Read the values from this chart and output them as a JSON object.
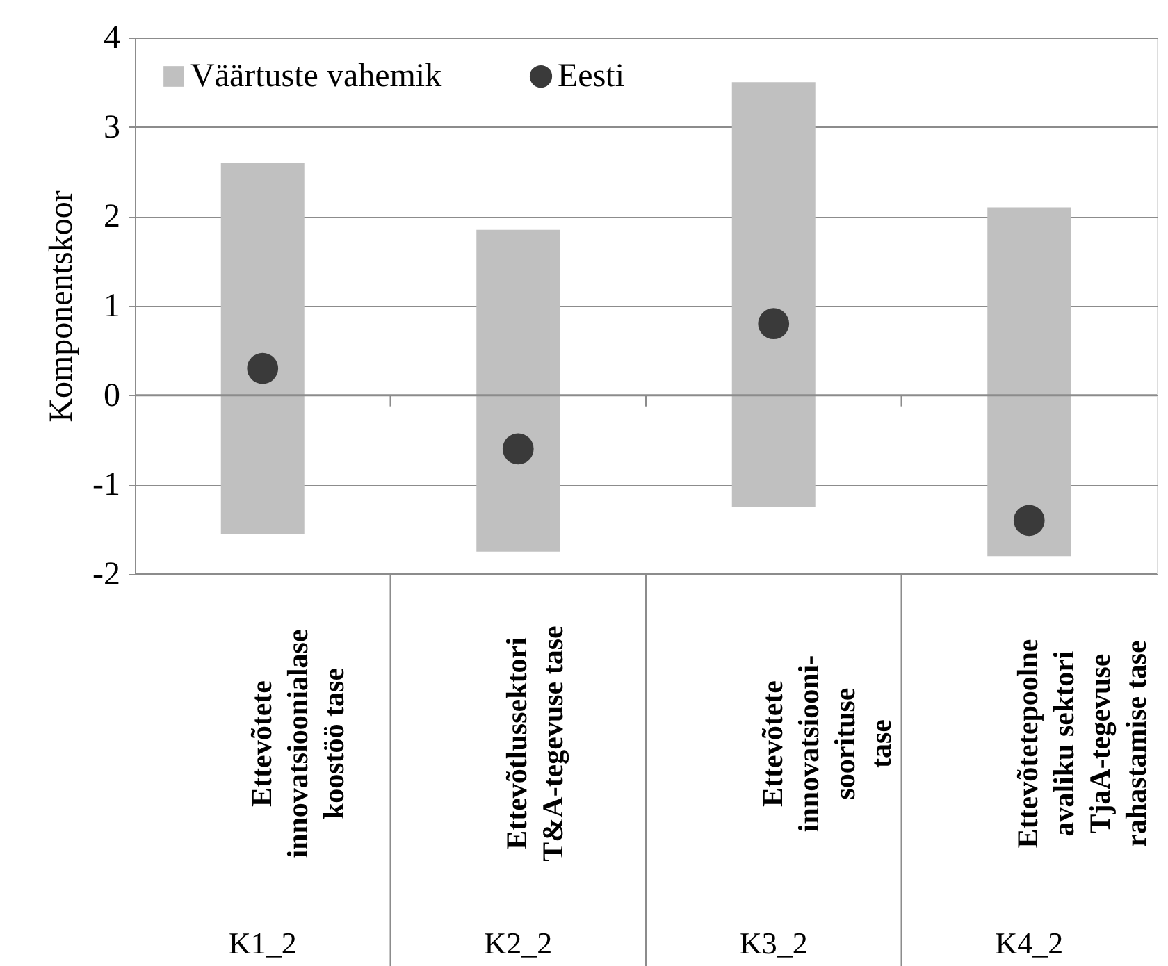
{
  "chart_data": {
    "type": "bar",
    "categories": [
      "Ettevõtete\ninnovatsioonialase\nkoostöö tase\nK1_2",
      "Ettevõtlussektori\nT&A-tegevuse tase\nK2_2",
      "Ettevõtete\ninnovatsiooni-\nsoorituse\ntase\nK3_2",
      "Ettevõtetepoolne\navaliku sektori\nTjaA-tegevuse\nrahastamise tase\nK4_2"
    ],
    "ylabel": "Komponentskoor",
    "series": [
      {
        "name": "Väärtuste vahemik",
        "type": "bar",
        "color": "#c0c0c0",
        "base": [
          -1.55,
          -1.75,
          -1.25,
          -1.8
        ],
        "values": [
          4.15,
          3.6,
          4.75,
          3.9
        ]
      },
      {
        "name": "Eesti",
        "type": "scatter",
        "color": "#3a3a3a",
        "values": [
          0.3,
          -0.6,
          0.8,
          -1.4
        ],
        "marker": "circle"
      }
    ],
    "ylim": [
      -2,
      4
    ],
    "yticks": [
      -2,
      -1,
      0,
      1,
      2,
      3,
      4
    ],
    "grid": "y",
    "legend": "top left"
  }
}
